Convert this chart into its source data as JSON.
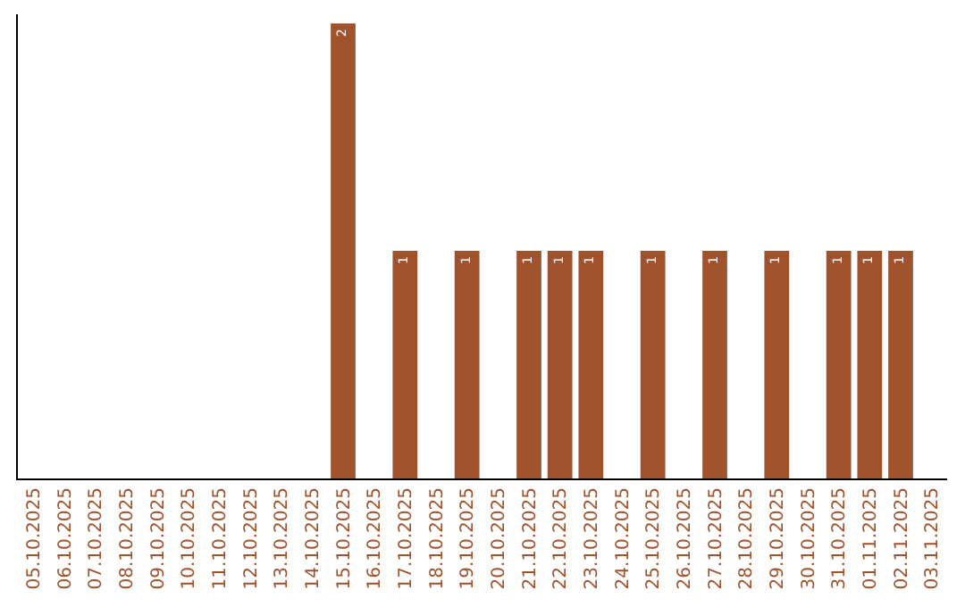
{
  "chart_data": {
    "type": "bar",
    "categories": [
      "05.10.2025",
      "06.10.2025",
      "07.10.2025",
      "08.10.2025",
      "09.10.2025",
      "10.10.2025",
      "11.10.2025",
      "12.10.2025",
      "13.10.2025",
      "14.10.2025",
      "15.10.2025",
      "16.10.2025",
      "17.10.2025",
      "18.10.2025",
      "19.10.2025",
      "20.10.2025",
      "21.10.2025",
      "22.10.2025",
      "23.10.2025",
      "24.10.2025",
      "25.10.2025",
      "26.10.2025",
      "27.10.2025",
      "28.10.2025",
      "29.10.2025",
      "30.10.2025",
      "31.10.2025",
      "01.11.2025",
      "02.11.2025",
      "03.11.2025"
    ],
    "values": [
      0,
      0,
      0,
      0,
      0,
      0,
      0,
      0,
      0,
      0,
      2,
      0,
      1,
      0,
      1,
      0,
      1,
      1,
      1,
      0,
      1,
      0,
      1,
      0,
      1,
      0,
      1,
      1,
      1,
      0
    ],
    "value_labels": [
      null,
      null,
      null,
      null,
      null,
      null,
      null,
      null,
      null,
      null,
      "2",
      null,
      "1",
      null,
      "1",
      null,
      "1",
      "1",
      "1",
      null,
      "1",
      null,
      "1",
      null,
      "1",
      null,
      "1",
      "1",
      "1",
      null
    ],
    "color": "#a0522d",
    "ylim": [
      0,
      2.04
    ],
    "tick_labels": "x"
  }
}
